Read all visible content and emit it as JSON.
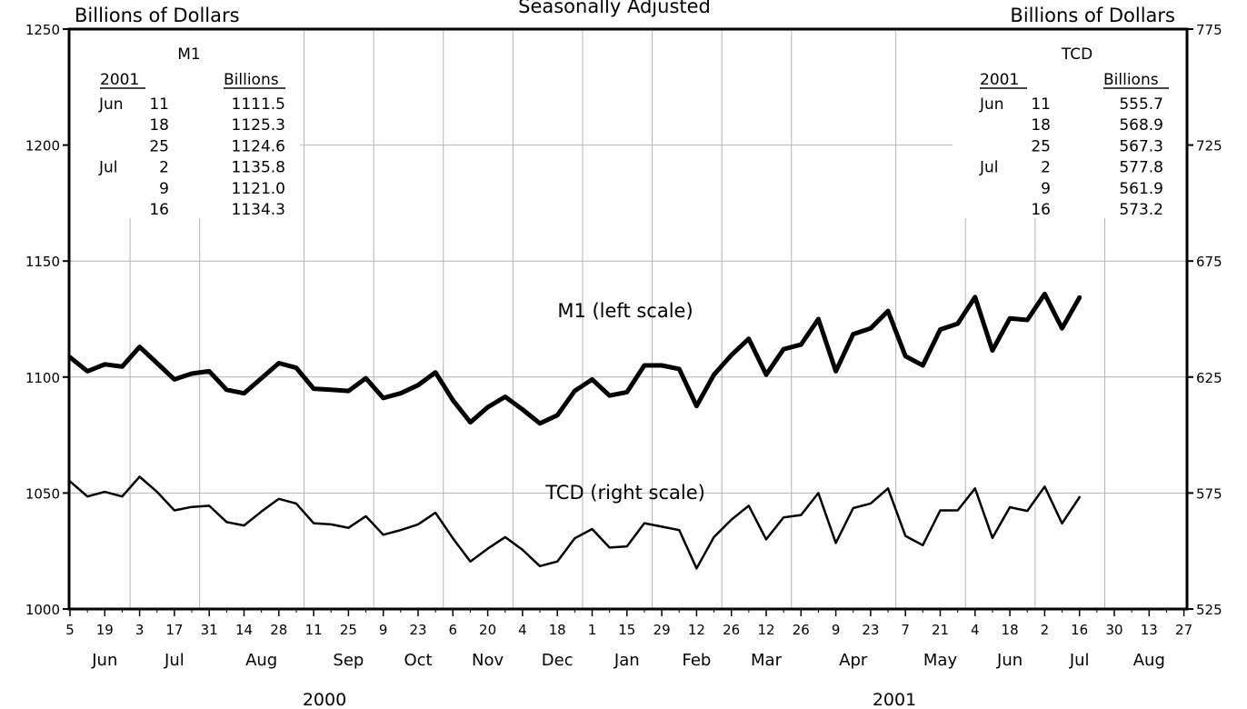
{
  "chart_data": {
    "type": "line",
    "title": "Seasonally Adjusted",
    "left_axis_label": "Billions of Dollars",
    "right_axis_label": "Billions of Dollars",
    "y_left": {
      "lim": [
        1000,
        1250
      ],
      "ticks": [
        1000,
        1050,
        1100,
        1150,
        1200,
        1250
      ]
    },
    "y_right": {
      "lim": [
        525,
        775
      ],
      "ticks": [
        525,
        575,
        625,
        675,
        725,
        775
      ]
    },
    "x_ticks": [
      "5",
      "19",
      "3",
      "17",
      "31",
      "14",
      "28",
      "11",
      "25",
      "9",
      "23",
      "6",
      "20",
      "4",
      "18",
      "1",
      "15",
      "29",
      "12",
      "26",
      "12",
      "26",
      "9",
      "23",
      "7",
      "21",
      "4",
      "18",
      "2",
      "16",
      "30",
      "13",
      "27"
    ],
    "months": [
      "Jun",
      "Jul",
      "Aug",
      "Sep",
      "Oct",
      "Nov",
      "Dec",
      "Jan",
      "Feb",
      "Mar",
      "Apr",
      "May",
      "Jun",
      "Jul",
      "Aug"
    ],
    "years": [
      "2000",
      "2001"
    ],
    "series": [
      {
        "name": "M1 (left scale)",
        "axis": "left",
        "color": "#000000",
        "values": [
          1108.5,
          1102.5,
          1105.5,
          1104.5,
          1113,
          1106,
          1099,
          1101.5,
          1102.5,
          1094.5,
          1093,
          1099.5,
          1106,
          1104,
          1095,
          1094.5,
          1094,
          1099.5,
          1091,
          1093,
          1096.5,
          1102,
          1090,
          1080.5,
          1087,
          1091.5,
          1086,
          1080,
          1083.5,
          1094,
          1099,
          1092,
          1093.5,
          1105,
          1105,
          1103.5,
          1087.5,
          1101,
          1109.5,
          1116.5,
          1101,
          1112,
          1114,
          1125,
          1102.5,
          1118.5,
          1121,
          1128.5,
          1109,
          1105,
          1120.5,
          1123,
          1134.5,
          1111.5,
          1125.3,
          1124.6,
          1135.8,
          1121,
          1134.3
        ]
      },
      {
        "name": "TCD (right scale)",
        "axis": "right",
        "color": "#000000",
        "values": [
          580,
          573.5,
          575.5,
          573.5,
          582,
          575.5,
          567.5,
          569,
          569.5,
          562.5,
          561,
          567,
          572.5,
          570.5,
          562,
          561.5,
          560,
          565,
          557,
          559,
          561.5,
          566.5,
          555.5,
          545.5,
          551,
          556,
          550.5,
          543.5,
          545.5,
          555.5,
          559.5,
          551.5,
          552,
          562,
          560.5,
          559,
          542.5,
          556,
          563.5,
          569.5,
          555,
          564.5,
          565.5,
          575,
          553.5,
          568.5,
          570.5,
          577,
          556.5,
          552.5,
          567.5,
          567.5,
          577,
          555.7,
          568.9,
          567.3,
          577.8,
          561.9,
          573.2
        ]
      }
    ],
    "tables": [
      {
        "title": "M1",
        "year_header": "2001",
        "value_header": "Billions",
        "rows": [
          {
            "month": "Jun",
            "day": "11",
            "value": "1111.5"
          },
          {
            "month": "",
            "day": "18",
            "value": "1125.3"
          },
          {
            "month": "",
            "day": "25",
            "value": "1124.6"
          },
          {
            "month": "Jul",
            "day": "2",
            "value": "1135.8"
          },
          {
            "month": "",
            "day": "9",
            "value": "1121.0"
          },
          {
            "month": "",
            "day": "16",
            "value": "1134.3"
          }
        ]
      },
      {
        "title": "TCD",
        "year_header": "2001",
        "value_header": "Billions",
        "rows": [
          {
            "month": "Jun",
            "day": "11",
            "value": "555.7"
          },
          {
            "month": "",
            "day": "18",
            "value": "568.9"
          },
          {
            "month": "",
            "day": "25",
            "value": "567.3"
          },
          {
            "month": "Jul",
            "day": "2",
            "value": "577.8"
          },
          {
            "month": "",
            "day": "9",
            "value": "561.9"
          },
          {
            "month": "",
            "day": "16",
            "value": "573.2"
          }
        ]
      }
    ],
    "grid": true,
    "legend": "labels on plot"
  }
}
